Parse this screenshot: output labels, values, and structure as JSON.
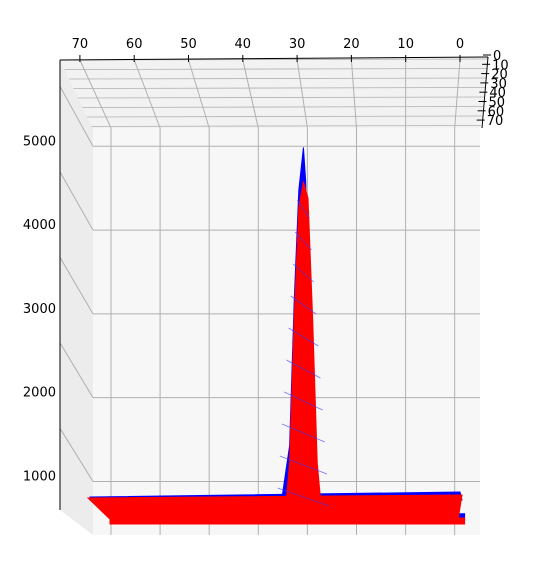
{
  "chart_data": {
    "type": "surface",
    "title": "",
    "xlabel": "",
    "ylabel": "",
    "zlabel": "",
    "grid": true,
    "x_axis_ticks": [
      "70",
      "60",
      "50",
      "40",
      "30",
      "20",
      "10",
      "0"
    ],
    "y_axis_ticks": [
      "0",
      "10",
      "20",
      "30",
      "40",
      "50",
      "60",
      "70"
    ],
    "z_axis_ticks": [
      "1000",
      "2000",
      "3000",
      "4000",
      "5000"
    ],
    "z_range": [
      600,
      5600
    ],
    "baseline_z": 700,
    "series": [
      {
        "color": "#0000ff",
        "peak": {
          "x": 34,
          "z": 5000
        },
        "surface_profile": [
          [
            76,
            700
          ],
          [
            60,
            700
          ],
          [
            45,
            700
          ],
          [
            39,
            760
          ],
          [
            37,
            1500
          ],
          [
            36,
            3200
          ],
          [
            35,
            4500
          ],
          [
            34,
            5000
          ],
          [
            33.5,
            4600
          ],
          [
            33,
            3200
          ],
          [
            32,
            1500
          ],
          [
            31,
            760
          ],
          [
            25,
            700
          ],
          [
            10,
            700
          ],
          [
            -1,
            700
          ]
        ]
      },
      {
        "color": "#ff0000",
        "peak": {
          "x": 34,
          "z": 4600
        },
        "surface_profile": [
          [
            76,
            650
          ],
          [
            60,
            650
          ],
          [
            45,
            650
          ],
          [
            38,
            700
          ],
          [
            37,
            1300
          ],
          [
            36,
            3000
          ],
          [
            35,
            4300
          ],
          [
            34,
            4600
          ],
          [
            33,
            4400
          ],
          [
            32,
            3000
          ],
          [
            31,
            1300
          ],
          [
            30,
            700
          ],
          [
            20,
            650
          ],
          [
            10,
            650
          ],
          [
            -1,
            650
          ]
        ]
      }
    ],
    "colors": {
      "blue_series": "#0000ff",
      "red_series": "#ff0000",
      "pane": "#f2f2f2",
      "grid": "#b0b0b0"
    }
  }
}
